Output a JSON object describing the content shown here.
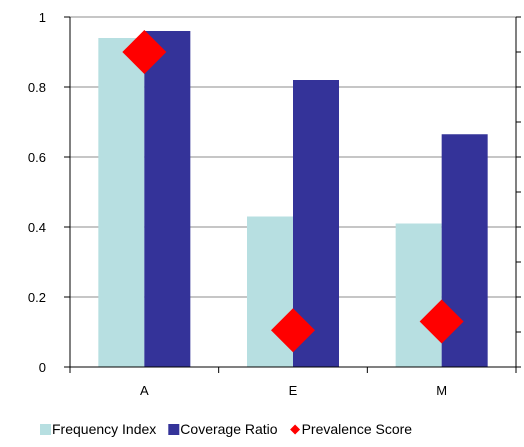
{
  "chart_data": {
    "type": "bar",
    "categories": [
      "A",
      "E",
      "M"
    ],
    "series": [
      {
        "name": "Frequency Index",
        "kind": "bar",
        "color": "#b7dfe1",
        "values": [
          0.94,
          0.43,
          0.41
        ]
      },
      {
        "name": "Coverage Ratio",
        "kind": "bar",
        "color": "#343399",
        "values": [
          0.96,
          0.82,
          0.665
        ]
      },
      {
        "name": "Prevalence Score",
        "kind": "marker",
        "marker": "diamond",
        "color": "#ff0000",
        "values": [
          0.9,
          0.105,
          0.13
        ]
      }
    ],
    "ylim": [
      0,
      1
    ],
    "yticks": [
      "0",
      "0.2",
      "0.4",
      "0.6",
      "0.8",
      "1"
    ],
    "grid": true,
    "legend_position": "bottom",
    "secondary_axis": "right, unlabeled ticks"
  }
}
